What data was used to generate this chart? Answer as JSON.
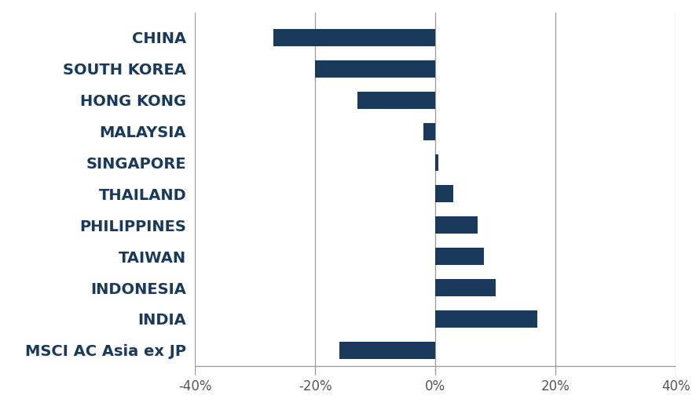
{
  "categories": [
    "CHINA",
    "SOUTH KOREA",
    "HONG KONG",
    "MALAYSIA",
    "SINGAPORE",
    "THAILAND",
    "PHILIPPINES",
    "TAIWAN",
    "INDONESIA",
    "INDIA",
    "MSCI AC Asia ex JP"
  ],
  "values": [
    -27,
    -20,
    -13,
    -2,
    0.5,
    3,
    7,
    8,
    10,
    17,
    -16
  ],
  "bar_color": "#1a3a5c",
  "label_color": "#1a3a5c",
  "background_color": "#ffffff",
  "xlim": [
    -40,
    40
  ],
  "xticks": [
    -40,
    -20,
    0,
    20,
    40
  ],
  "xticklabels": [
    "-40%",
    "-20%",
    "0%",
    "20%",
    "40%"
  ],
  "grid_color": "#999999",
  "tick_label_color": "#555555",
  "figsize": [
    8.87,
    5.32
  ],
  "dpi": 100,
  "label_fontsize": 14,
  "tick_fontsize": 12,
  "bar_height": 0.55
}
